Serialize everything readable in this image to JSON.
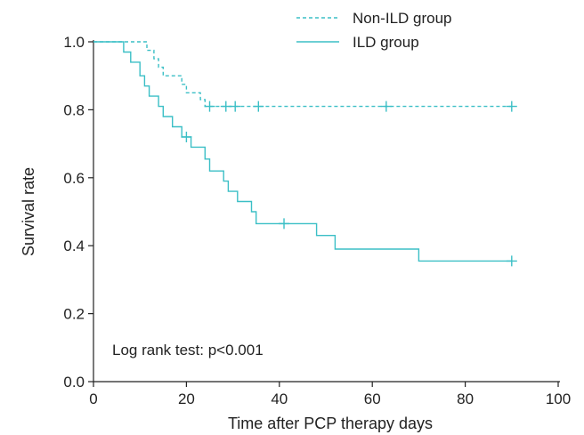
{
  "chart_data": {
    "type": "line",
    "xlabel": "Time after PCP therapy days",
    "ylabel": "Survival rate",
    "xlim": [
      0,
      100
    ],
    "ylim": [
      0,
      1
    ],
    "x_ticks": [
      "0",
      "20",
      "40",
      "60",
      "80",
      "100"
    ],
    "y_ticks": [
      "0.0",
      "0.2",
      "0.4",
      "0.6",
      "0.8",
      "1.0"
    ],
    "x_tick_values": [
      0,
      20,
      40,
      60,
      80,
      100
    ],
    "y_tick_values": [
      0,
      0.2,
      0.4,
      0.6,
      0.8,
      1.0
    ],
    "grid": false,
    "legend_position": "top-right",
    "annotation": "Log rank test: p<0.001",
    "line_color": "#3bbfc6",
    "series": [
      {
        "name": "Non-ILD group",
        "style": "dashed",
        "steps": [
          [
            0,
            1.0
          ],
          [
            11.5,
            0.975
          ],
          [
            13,
            0.95
          ],
          [
            14,
            0.925
          ],
          [
            15,
            0.9
          ],
          [
            19,
            0.875
          ],
          [
            20,
            0.85
          ],
          [
            23,
            0.83
          ],
          [
            24,
            0.81
          ],
          [
            90,
            0.81
          ]
        ],
        "censored": [
          [
            25,
            0.81
          ],
          [
            28.5,
            0.81
          ],
          [
            30.5,
            0.81
          ],
          [
            35.5,
            0.81
          ],
          [
            63,
            0.81
          ],
          [
            90,
            0.81
          ]
        ]
      },
      {
        "name": "ILD group",
        "style": "solid",
        "steps": [
          [
            0,
            1.0
          ],
          [
            6.5,
            0.97
          ],
          [
            8,
            0.94
          ],
          [
            10,
            0.9
          ],
          [
            11,
            0.87
          ],
          [
            12,
            0.84
          ],
          [
            14,
            0.81
          ],
          [
            15,
            0.78
          ],
          [
            17,
            0.75
          ],
          [
            19,
            0.72
          ],
          [
            21,
            0.69
          ],
          [
            24,
            0.655
          ],
          [
            25,
            0.62
          ],
          [
            28,
            0.59
          ],
          [
            29,
            0.56
          ],
          [
            31,
            0.53
          ],
          [
            34,
            0.5
          ],
          [
            35,
            0.465
          ],
          [
            48,
            0.43
          ],
          [
            52,
            0.39
          ],
          [
            70,
            0.355
          ],
          [
            90,
            0.355
          ]
        ],
        "censored": [
          [
            20,
            0.72
          ],
          [
            41,
            0.465
          ],
          [
            90,
            0.355
          ]
        ]
      }
    ]
  }
}
